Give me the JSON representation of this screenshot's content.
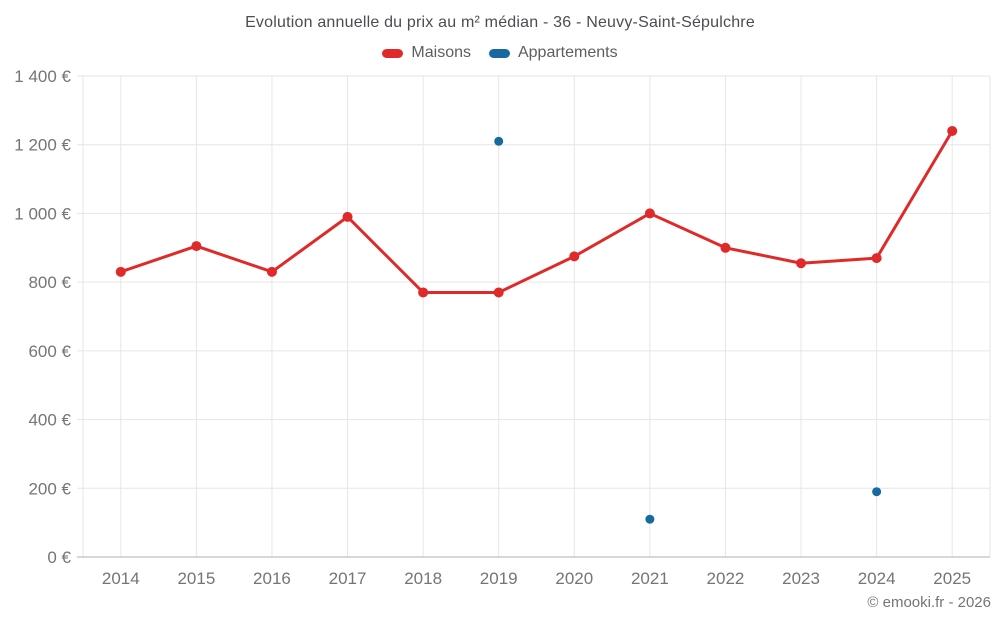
{
  "header": {
    "title": "Evolution annuelle du prix au m² médian - 36 - Neuvy-Saint-Sépulchre"
  },
  "legend": [
    {
      "label": "Maisons",
      "color": "#e02a2a"
    },
    {
      "label": "Appartements",
      "color": "#17699f"
    }
  ],
  "footer": {
    "copyright": "© emooki.fr - 2026"
  },
  "colors": {
    "maisons": "#e02a2a",
    "appartements": "#17699f",
    "gridline": "#e6e6e6",
    "axis_line": "#b0b0b0",
    "tick_label": "#757575",
    "background": "#ffffff"
  },
  "chart_data": {
    "type": "line",
    "title": "Evolution annuelle du prix au m² médian - 36 - Neuvy-Saint-Sépulchre",
    "categories": [
      "2014",
      "2015",
      "2016",
      "2017",
      "2018",
      "2019",
      "2020",
      "2021",
      "2022",
      "2023",
      "2024",
      "2025"
    ],
    "series": [
      {
        "name": "Maisons",
        "color": "#e02a2a",
        "style": "line-with-markers",
        "values": [
          830,
          905,
          830,
          990,
          770,
          770,
          875,
          1000,
          900,
          855,
          870,
          1240
        ]
      },
      {
        "name": "Appartements",
        "color": "#17699f",
        "style": "markers-only",
        "values": [
          null,
          null,
          null,
          null,
          null,
          1210,
          null,
          110,
          null,
          null,
          190,
          null
        ]
      }
    ],
    "xlabel": "",
    "ylabel": "",
    "ylim": [
      0,
      1400
    ],
    "ytick_step": 200,
    "ytick_labels": [
      "0 €",
      "200 €",
      "400 €",
      "600 €",
      "800 €",
      "1 000 €",
      "1 200 €",
      "1 400 €"
    ],
    "grid": true,
    "legend_position": "top",
    "unit": "€"
  }
}
